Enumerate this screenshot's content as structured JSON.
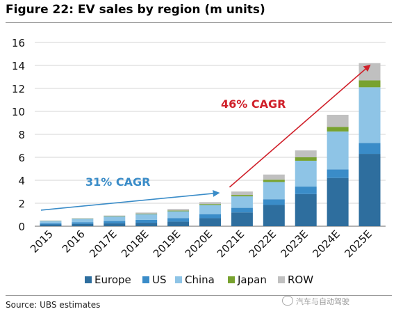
{
  "title": "Figure 22: EV sales by region (m units)",
  "source": "Source:  UBS estimates",
  "watermark": "汽车与自动驾驶",
  "chart_data": {
    "type": "bar",
    "stacked": true,
    "title": "Figure 22: EV sales by region (m units)",
    "xlabel": "",
    "ylabel": "",
    "ylim": [
      0,
      16
    ],
    "yticks": [
      0,
      2,
      4,
      6,
      8,
      10,
      12,
      14,
      16
    ],
    "grid": true,
    "legend_position": "bottom",
    "categories": [
      "2015",
      "2016",
      "2017E",
      "2018E",
      "2019E",
      "2020E",
      "2021E",
      "2022E",
      "2023E",
      "2024E",
      "2025E"
    ],
    "series": [
      {
        "name": "Europe",
        "color": "#2e6e9e",
        "values": [
          0.15,
          0.2,
          0.25,
          0.3,
          0.4,
          0.7,
          1.2,
          1.85,
          2.8,
          4.2,
          6.3
        ]
      },
      {
        "name": "US",
        "color": "#3a8cc8",
        "values": [
          0.1,
          0.15,
          0.2,
          0.25,
          0.3,
          0.35,
          0.4,
          0.5,
          0.65,
          0.75,
          0.95
        ]
      },
      {
        "name": "China",
        "color": "#8ec4e6",
        "values": [
          0.2,
          0.3,
          0.4,
          0.5,
          0.6,
          0.8,
          1.0,
          1.5,
          2.25,
          3.3,
          4.85
        ]
      },
      {
        "name": "Japan",
        "color": "#78a22f",
        "values": [
          0.02,
          0.02,
          0.03,
          0.04,
          0.06,
          0.08,
          0.12,
          0.2,
          0.3,
          0.4,
          0.6
        ]
      },
      {
        "name": "ROW",
        "color": "#c0c0c0",
        "values": [
          0.03,
          0.03,
          0.05,
          0.1,
          0.14,
          0.17,
          0.3,
          0.45,
          0.6,
          1.05,
          1.5
        ]
      }
    ],
    "annotations": [
      {
        "text": "31% CAGR",
        "color": "#3a8cc8",
        "from": [
          "2015",
          1.4
        ],
        "to": [
          "2020E",
          2.9
        ]
      },
      {
        "text": "46% CAGR",
        "color": "#d0202a",
        "from": [
          "2021E",
          3.4
        ],
        "to": [
          "2025E",
          14.0
        ]
      }
    ]
  }
}
